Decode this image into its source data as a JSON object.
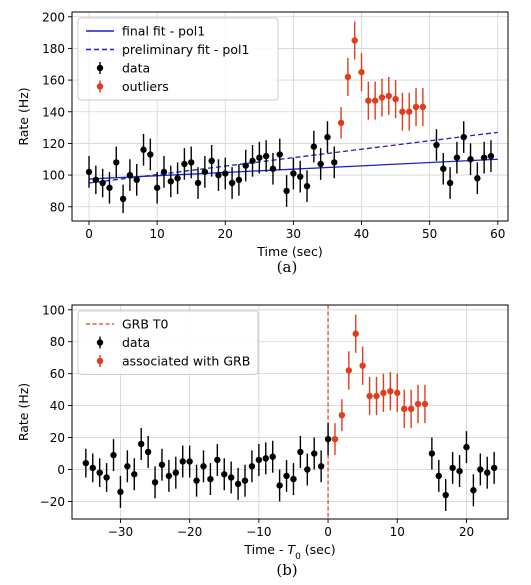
{
  "colors": {
    "data": "#000000",
    "outliers": "#e03c1e",
    "final_fit": "#1f1fd0",
    "preliminary_fit": "#1f1fd0",
    "grb_line": "#e03c1e",
    "grid": "#d4d4d4"
  },
  "chart_data": [
    {
      "type": "scatter",
      "caption": "(a)",
      "xlabel": "Time (sec)",
      "ylabel": "Rate (Hz)",
      "xlim": [
        -2.5,
        61.5
      ],
      "ylim": [
        71,
        203
      ],
      "xticks": [
        0,
        10,
        20,
        30,
        40,
        50,
        60
      ],
      "yticks": [
        80,
        100,
        120,
        140,
        160,
        180,
        200
      ],
      "grid": true,
      "legend_position": "top-left",
      "legend": [
        "final fit - pol1",
        "preliminary fit - pol1",
        "data",
        "outliers"
      ],
      "lines": [
        {
          "name": "final fit - pol1",
          "style": "solid",
          "x": [
            0,
            60
          ],
          "y": [
            97.5,
            110
          ]
        },
        {
          "name": "preliminary fit - pol1",
          "style": "dashed",
          "x": [
            0,
            60
          ],
          "y": [
            95,
            127
          ]
        }
      ],
      "series": [
        {
          "name": "data",
          "x": [
            0,
            1,
            2,
            3,
            4,
            5,
            6,
            7,
            8,
            9,
            10,
            11,
            12,
            13,
            14,
            15,
            16,
            17,
            18,
            19,
            20,
            21,
            22,
            23,
            24,
            25,
            26,
            27,
            28,
            29,
            30,
            31,
            32,
            33,
            34,
            35,
            36,
            51,
            52,
            53,
            54,
            55,
            56,
            57,
            58,
            59
          ],
          "y": [
            102,
            97,
            95,
            92,
            108,
            85,
            100,
            97,
            116,
            113,
            92,
            102,
            96,
            98,
            107,
            108,
            95,
            102,
            109,
            100,
            101,
            95,
            97,
            106,
            109,
            111,
            112,
            104,
            113,
            90,
            101,
            99,
            93,
            118,
            107,
            124,
            108,
            119,
            104,
            95,
            111,
            124,
            110,
            98,
            111,
            112
          ],
          "yerr": [
            10,
            9,
            9,
            10,
            10,
            9,
            10,
            10,
            10,
            10,
            10,
            10,
            10,
            10,
            10,
            10,
            10,
            10,
            10,
            10,
            10,
            10,
            10,
            10,
            10,
            10,
            10,
            10,
            10,
            10,
            10,
            10,
            10,
            10,
            10,
            10,
            10,
            10,
            10,
            10,
            10,
            10,
            10,
            10,
            10,
            10
          ]
        },
        {
          "name": "outliers",
          "x": [
            37,
            38,
            39,
            40,
            41,
            42,
            43,
            44,
            45,
            46,
            47,
            48,
            49
          ],
          "y": [
            133,
            162,
            185,
            165,
            147,
            147,
            149,
            150,
            148,
            140,
            140,
            143,
            143
          ],
          "yerr": [
            10,
            12,
            12,
            12,
            12,
            12,
            12,
            12,
            12,
            12,
            12,
            12,
            12
          ]
        }
      ]
    },
    {
      "type": "scatter",
      "caption": "(b)",
      "xlabel": "Time - T0 (sec)",
      "xlabel_main": "Time - ",
      "xlabel_sym": "T",
      "xlabel_sub": "0",
      "xlabel_tail": " (sec)",
      "ylabel": "Rate (Hz)",
      "xlim": [
        -37,
        26
      ],
      "ylim": [
        -31,
        103
      ],
      "xticks": [
        -30,
        -20,
        -10,
        0,
        10,
        20
      ],
      "yticks": [
        -20,
        0,
        20,
        40,
        60,
        80,
        100
      ],
      "grid": true,
      "legend_position": "top-left",
      "legend": [
        "GRB T0",
        "data",
        "associated with GRB"
      ],
      "vline": {
        "name": "GRB T0",
        "x": 0
      },
      "series": [
        {
          "name": "data",
          "x": [
            -35,
            -34,
            -33,
            -32,
            -31,
            -30,
            -29,
            -28,
            -27,
            -26,
            -25,
            -24,
            -23,
            -22,
            -21,
            -20,
            -19,
            -18,
            -17,
            -16,
            -15,
            -14,
            -13,
            -12,
            -11,
            -10,
            -9,
            -8,
            -7,
            -6,
            -5,
            -4,
            -3,
            -2,
            -1,
            0,
            15,
            16,
            17,
            18,
            19,
            20,
            21,
            22,
            23,
            24
          ],
          "y": [
            4,
            1,
            -2,
            -5,
            9,
            -14,
            2,
            -3,
            16,
            11,
            -8,
            3,
            -4,
            -2,
            5,
            5,
            -7,
            2,
            -6,
            6,
            -3,
            -5,
            -9,
            -7,
            2,
            6,
            7,
            8,
            -10,
            -4,
            -6,
            11,
            0,
            10,
            2,
            19,
            10,
            -4,
            -16,
            1,
            -1,
            14,
            -13,
            0,
            -2,
            1
          ],
          "yerr": [
            9,
            9,
            9,
            9,
            10,
            10,
            10,
            10,
            10,
            10,
            10,
            10,
            10,
            10,
            10,
            10,
            10,
            10,
            10,
            10,
            10,
            10,
            10,
            10,
            10,
            10,
            10,
            10,
            10,
            10,
            10,
            10,
            10,
            10,
            10,
            10,
            10,
            10,
            10,
            10,
            10,
            10,
            10,
            10,
            10,
            10
          ]
        },
        {
          "name": "associated with GRB",
          "x": [
            1,
            2,
            3,
            4,
            5,
            6,
            7,
            8,
            9,
            10,
            11,
            12,
            13,
            14
          ],
          "y": [
            19,
            34,
            62,
            85,
            65,
            46,
            46,
            48,
            49,
            48,
            38,
            38,
            41,
            41
          ],
          "yerr": [
            10,
            10,
            12,
            12,
            12,
            12,
            12,
            12,
            12,
            12,
            12,
            12,
            12,
            12
          ]
        }
      ]
    }
  ]
}
